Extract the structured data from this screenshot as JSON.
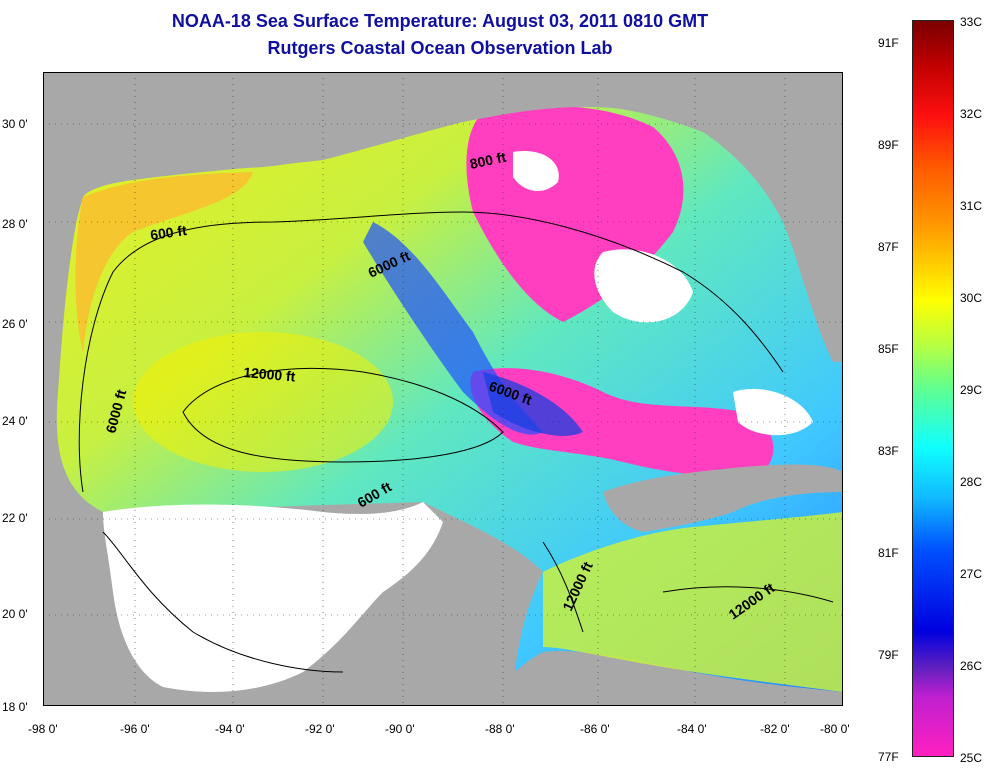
{
  "title_line1": "NOAA-18 Sea Surface Temperature:  August 03, 2011 0810 GMT",
  "title_line2": "Rutgers Coastal Ocean Observation Lab",
  "lat_labels": [
    "30 0'",
    "28 0'",
    "26 0'",
    "24 0'",
    "22 0'",
    "20 0'",
    "18 0'"
  ],
  "lon_labels": [
    "-98 0'",
    "-96 0'",
    "-94 0'",
    "-92 0'",
    "-90 0'",
    "-88 0'",
    "-86 0'",
    "-84 0'",
    "-82 0'",
    "-80 0'"
  ],
  "colorbar": {
    "fahrenheit_labels": [
      "91F",
      "89F",
      "87F",
      "85F",
      "83F",
      "81F",
      "79F",
      "77F"
    ],
    "celsius_labels": [
      "33C",
      "32C",
      "31C",
      "30C",
      "29C",
      "28C",
      "27C",
      "26C",
      "25C"
    ]
  },
  "contour_labels": {
    "c600_west": "600 ft",
    "c6000_north": "6000 ft",
    "c800_ne": "800 ft",
    "c12000_center": "12000 ft",
    "c6000_west": "6000 ft",
    "c6000_east": "6000 ft",
    "c600_south": "600 ft",
    "c12000_yucatan": "12000 ft",
    "c12000_caribbean": "12000 ft"
  },
  "colors": {
    "land": "#a8a8a8",
    "cloud": "#ffffff",
    "title": "#1010a0"
  }
}
